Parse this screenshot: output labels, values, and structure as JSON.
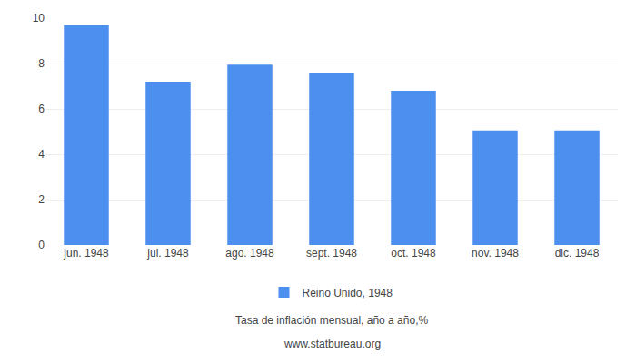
{
  "chart_data": {
    "type": "bar",
    "subtitle": "Tasa de inflación mensual, año a año,%",
    "annotations": [
      "www.statbureau.org"
    ],
    "categories": [
      "jun. 1948",
      "jul. 1948",
      "ago. 1948",
      "sept. 1948",
      "oct. 1948",
      "nov. 1948",
      "dic. 1948"
    ],
    "series": [
      {
        "name": "Reino Unido, 1948",
        "color": "#4d8fef",
        "values": [
          9.7,
          7.2,
          7.95,
          7.6,
          6.8,
          5.05,
          5.05
        ]
      }
    ],
    "ylim": [
      0,
      10
    ],
    "yticks": [
      0,
      2,
      4,
      6,
      8,
      10
    ],
    "grid": true,
    "legend": "bottom"
  }
}
